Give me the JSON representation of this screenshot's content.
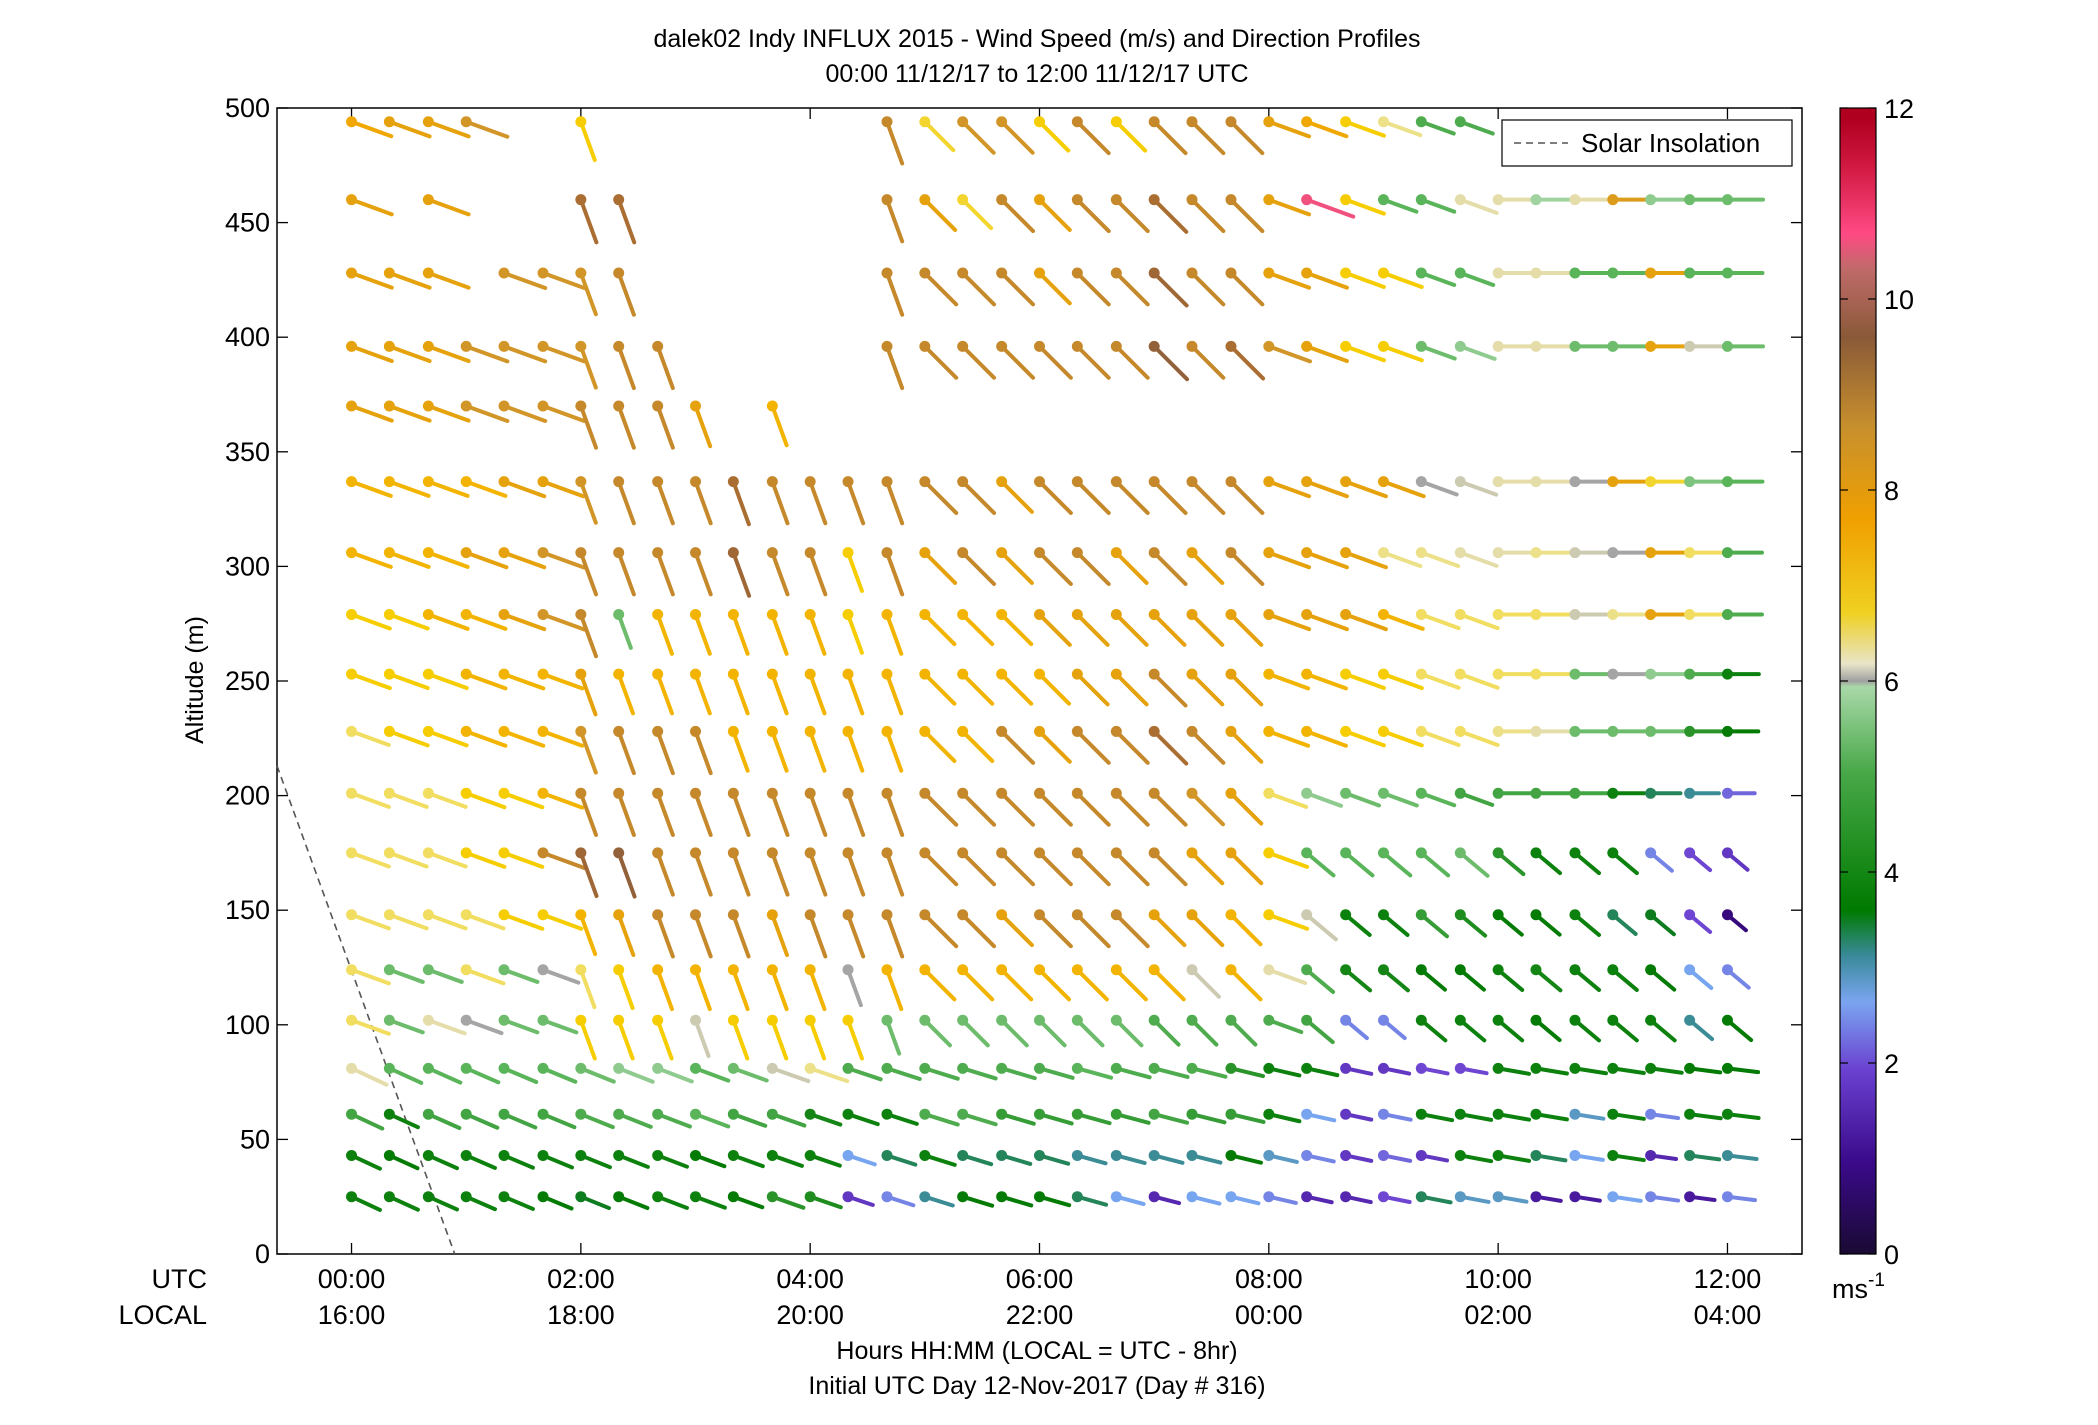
{
  "chart_data": {
    "type": "scatter",
    "subtype": "wind-barb-profile",
    "title": "dalek02 Indy INFLUX 2015 - Wind Speed (m/s) and Direction Profiles",
    "subtitle": "00:00 11/12/17 to 12:00 11/12/17  UTC",
    "xlabel": "Hours HH:MM  (LOCAL = UTC - 8hr)",
    "xlabel2": "Initial UTC Day 12-Nov-2017 (Day # 316)",
    "ylabel": "Altitude (m)",
    "xlim_hours": [
      -0.65,
      12.65
    ],
    "ylim": [
      0,
      500
    ],
    "yticks": [
      0,
      50,
      100,
      150,
      200,
      250,
      300,
      350,
      400,
      450,
      500
    ],
    "xtick_row_labels": {
      "utc": "UTC",
      "local": "LOCAL"
    },
    "xticks_utc": [
      "00:00",
      "02:00",
      "04:00",
      "06:00",
      "08:00",
      "10:00",
      "12:00"
    ],
    "xticks_local": [
      "16:00",
      "18:00",
      "20:00",
      "22:00",
      "00:00",
      "02:00",
      "04:00"
    ],
    "xtick_hours": [
      0,
      2,
      4,
      6,
      8,
      10,
      12
    ],
    "colorbar": {
      "label_base": "ms",
      "label_exp": "-1",
      "ticks": [
        0,
        2,
        4,
        6,
        8,
        10,
        12
      ],
      "range": [
        0,
        12
      ]
    },
    "legend": {
      "entries": [
        "Solar Insolation"
      ],
      "placement": "top-right",
      "line_style": "dashed",
      "line_color": "#555555"
    },
    "solar_insolation": {
      "x_hours": [
        -0.65,
        0.9
      ],
      "altitude_m": [
        213,
        0
      ]
    },
    "grid": false,
    "times_hours": [
      0,
      0.33,
      0.67,
      1,
      1.33,
      1.67,
      2,
      2.33,
      2.67,
      3,
      3.33,
      3.67,
      4,
      4.33,
      4.67,
      5,
      5.33,
      5.67,
      6,
      6.33,
      6.67,
      7,
      7.33,
      7.67,
      8,
      8.33,
      8.67,
      9,
      9.33,
      9.67,
      10,
      10.33,
      10.67,
      11,
      11.33,
      11.67,
      12
    ],
    "altitudes_m": [
      25,
      43,
      61,
      81,
      102,
      124,
      148,
      175,
      201,
      228,
      253,
      279,
      306,
      337,
      370,
      396,
      428,
      460,
      494
    ],
    "speed_rows": {
      "494": [
        7.8,
        8.0,
        8.0,
        8.4,
        null,
        null,
        7.2,
        null,
        null,
        null,
        null,
        null,
        null,
        null,
        8.6,
        7.0,
        8.4,
        8.4,
        7.2,
        8.6,
        7.2,
        8.6,
        8.6,
        8.6,
        8.0,
        7.8,
        7.2,
        6.6,
        4.8,
        4.8,
        null,
        null,
        null,
        null,
        null,
        null,
        null
      ],
      "460": [
        8.0,
        null,
        8.0,
        null,
        null,
        null,
        9.0,
        9.0,
        null,
        null,
        null,
        null,
        null,
        null,
        8.6,
        8.0,
        7.0,
        8.6,
        8.0,
        8.6,
        8.6,
        9.0,
        8.6,
        8.6,
        8.0,
        10.6,
        7.2,
        5.0,
        5.0,
        6.4,
        6.4,
        5.8,
        6.4,
        8.2,
        5.6,
        5.2,
        5.2
      ],
      "428": [
        8.0,
        8.0,
        8.0,
        null,
        8.4,
        8.4,
        8.4,
        8.6,
        null,
        null,
        null,
        null,
        null,
        null,
        8.6,
        8.6,
        8.6,
        8.6,
        8.0,
        8.6,
        8.6,
        9.2,
        8.6,
        8.6,
        8.0,
        8.0,
        7.2,
        7.2,
        5.0,
        5.0,
        6.4,
        6.4,
        5.0,
        5.0,
        8.0,
        5.0,
        5.0
      ],
      "396": [
        8.0,
        8.0,
        8.0,
        8.4,
        8.4,
        8.4,
        8.4,
        8.6,
        8.6,
        null,
        null,
        null,
        null,
        null,
        8.6,
        8.6,
        8.6,
        8.6,
        8.6,
        8.6,
        8.6,
        9.4,
        8.6,
        9.0,
        8.4,
        8.0,
        7.2,
        7.2,
        5.2,
        5.6,
        6.4,
        6.4,
        5.2,
        5.2,
        8.0,
        6.2,
        5.2
      ],
      "370": [
        8.0,
        8.0,
        8.0,
        8.4,
        8.4,
        8.4,
        8.6,
        8.6,
        8.6,
        8.0,
        null,
        7.6,
        null,
        null,
        null,
        null,
        null,
        null,
        null,
        null,
        null,
        null,
        null,
        null,
        null,
        null,
        null,
        null,
        null,
        null,
        null,
        null,
        null,
        null,
        null,
        null,
        null
      ],
      "337": [
        7.6,
        7.6,
        7.6,
        7.6,
        8.0,
        8.0,
        8.4,
        8.6,
        8.6,
        8.6,
        9.0,
        8.6,
        8.6,
        8.6,
        8.6,
        8.6,
        8.6,
        8.0,
        8.6,
        8.6,
        8.6,
        8.6,
        8.6,
        8.6,
        8.0,
        8.0,
        8.0,
        8.0,
        6.0,
        6.2,
        6.4,
        6.4,
        6.0,
        8.0,
        7.0,
        5.4,
        5.0
      ],
      "306": [
        7.6,
        7.6,
        7.6,
        8.0,
        8.0,
        8.4,
        8.6,
        8.6,
        8.6,
        8.6,
        9.2,
        8.6,
        8.6,
        7.2,
        8.6,
        8.0,
        8.6,
        8.0,
        8.6,
        8.6,
        8.0,
        8.6,
        8.0,
        8.6,
        8.0,
        8.0,
        8.0,
        6.6,
        6.6,
        6.4,
        6.4,
        6.6,
        6.2,
        6.0,
        8.0,
        6.8,
        4.8
      ],
      "279": [
        7.2,
        7.2,
        7.6,
        7.6,
        8.0,
        8.4,
        8.6,
        5.2,
        7.6,
        7.6,
        7.6,
        7.6,
        7.6,
        7.2,
        7.6,
        7.6,
        7.6,
        7.6,
        8.0,
        8.0,
        8.0,
        8.0,
        8.0,
        8.0,
        8.0,
        8.0,
        8.0,
        7.6,
        6.8,
        6.8,
        6.8,
        6.8,
        6.2,
        6.6,
        8.0,
        6.8,
        4.8
      ],
      "253": [
        7.2,
        7.2,
        7.2,
        7.6,
        7.6,
        7.6,
        8.0,
        7.6,
        7.6,
        7.6,
        7.6,
        7.6,
        7.6,
        7.6,
        7.6,
        7.6,
        7.6,
        7.6,
        7.6,
        8.0,
        8.0,
        8.6,
        8.0,
        8.0,
        7.6,
        7.6,
        7.2,
        7.2,
        6.8,
        6.8,
        6.8,
        6.8,
        5.2,
        6.0,
        5.6,
        4.8,
        3.6
      ],
      "228": [
        6.8,
        7.2,
        7.2,
        7.6,
        7.6,
        7.6,
        8.4,
        8.6,
        8.6,
        8.6,
        7.6,
        7.6,
        7.6,
        7.6,
        7.6,
        7.6,
        7.6,
        8.6,
        8.0,
        8.6,
        8.6,
        9.0,
        8.6,
        8.0,
        7.6,
        7.6,
        7.2,
        7.2,
        6.8,
        6.8,
        6.6,
        6.4,
        5.2,
        5.2,
        5.2,
        4.2,
        3.4
      ],
      "201": [
        6.8,
        6.8,
        6.8,
        7.2,
        7.2,
        7.6,
        8.6,
        8.6,
        8.6,
        8.6,
        8.6,
        8.6,
        8.6,
        8.6,
        8.6,
        8.6,
        8.6,
        8.6,
        8.6,
        8.6,
        8.6,
        8.6,
        8.4,
        8.0,
        6.8,
        5.6,
        5.2,
        5.2,
        5.0,
        4.6,
        4.6,
        4.6,
        4.6,
        3.6,
        3.0,
        2.8,
        2.0
      ],
      "175": [
        6.8,
        6.8,
        6.8,
        7.2,
        7.2,
        8.6,
        9.2,
        9.4,
        8.6,
        8.6,
        8.6,
        8.6,
        8.6,
        8.6,
        8.6,
        8.6,
        8.6,
        8.6,
        8.6,
        8.6,
        8.6,
        8.6,
        8.0,
        8.0,
        7.2,
        5.0,
        5.0,
        5.0,
        5.0,
        5.2,
        4.2,
        3.6,
        3.6,
        3.6,
        2.2,
        1.8,
        1.6
      ],
      "148": [
        6.8,
        6.8,
        6.8,
        6.8,
        7.2,
        7.2,
        7.6,
        8.0,
        8.6,
        8.6,
        8.6,
        8.0,
        8.6,
        8.6,
        8.6,
        8.6,
        8.6,
        8.0,
        8.6,
        8.6,
        8.6,
        8.0,
        8.0,
        7.6,
        7.2,
        6.2,
        3.6,
        3.6,
        4.4,
        4.0,
        3.4,
        3.4,
        3.6,
        3.0,
        3.2,
        1.8,
        0.8
      ],
      "124": [
        6.8,
        5.2,
        5.2,
        6.8,
        5.2,
        6.0,
        6.8,
        7.2,
        7.6,
        7.6,
        7.6,
        7.6,
        7.6,
        6.0,
        7.6,
        7.6,
        7.6,
        7.6,
        7.6,
        7.6,
        7.6,
        7.6,
        6.2,
        7.6,
        6.4,
        4.8,
        3.8,
        3.8,
        3.4,
        3.4,
        3.6,
        3.8,
        3.6,
        3.6,
        3.4,
        2.4,
        2.2
      ],
      "102": [
        6.8,
        5.2,
        6.4,
        6.0,
        5.2,
        5.2,
        7.2,
        7.2,
        7.2,
        6.2,
        7.2,
        7.2,
        7.2,
        7.2,
        5.2,
        5.2,
        5.2,
        5.2,
        5.2,
        5.2,
        5.2,
        4.8,
        4.8,
        4.8,
        4.8,
        4.6,
        2.2,
        2.2,
        3.6,
        3.6,
        3.6,
        3.4,
        3.6,
        3.6,
        3.6,
        2.8,
        3.4
      ],
      "81": [
        6.4,
        5.0,
        5.0,
        5.0,
        5.0,
        5.0,
        5.2,
        5.6,
        5.6,
        5.0,
        5.2,
        6.2,
        6.6,
        4.8,
        4.8,
        4.8,
        4.8,
        4.8,
        4.8,
        5.0,
        4.8,
        4.8,
        4.8,
        4.2,
        3.6,
        3.6,
        1.6,
        1.6,
        1.8,
        1.8,
        3.6,
        3.6,
        3.6,
        3.6,
        3.6,
        3.4,
        3.4
      ],
      "61": [
        4.6,
        3.6,
        4.6,
        4.6,
        4.6,
        4.6,
        4.8,
        4.8,
        4.8,
        5.0,
        4.6,
        4.6,
        3.8,
        3.6,
        3.6,
        4.8,
        4.8,
        4.4,
        4.4,
        4.4,
        4.4,
        4.6,
        4.4,
        4.4,
        3.6,
        2.4,
        1.6,
        2.2,
        3.6,
        3.6,
        3.6,
        3.6,
        2.6,
        3.6,
        2.2,
        3.6,
        3.6
      ],
      "43": [
        3.6,
        3.4,
        3.6,
        3.6,
        3.6,
        3.6,
        3.6,
        3.6,
        3.6,
        3.4,
        3.6,
        3.6,
        3.6,
        2.4,
        3.0,
        3.6,
        3.0,
        3.0,
        3.0,
        2.8,
        2.8,
        2.8,
        2.8,
        3.4,
        2.6,
        2.2,
        1.6,
        2.0,
        1.6,
        3.6,
        3.6,
        3.0,
        2.4,
        3.6,
        1.4,
        3.0,
        2.8
      ],
      "25": [
        3.6,
        3.6,
        3.6,
        3.6,
        3.6,
        3.4,
        3.2,
        3.4,
        3.6,
        3.6,
        3.4,
        4.2,
        4.0,
        1.6,
        2.2,
        2.8,
        3.4,
        3.4,
        3.4,
        3.0,
        2.4,
        1.4,
        2.4,
        2.4,
        2.2,
        1.4,
        1.4,
        1.8,
        3.0,
        2.6,
        2.6,
        1.2,
        1.2,
        2.4,
        2.2,
        1.2,
        2.2
      ]
    }
  }
}
